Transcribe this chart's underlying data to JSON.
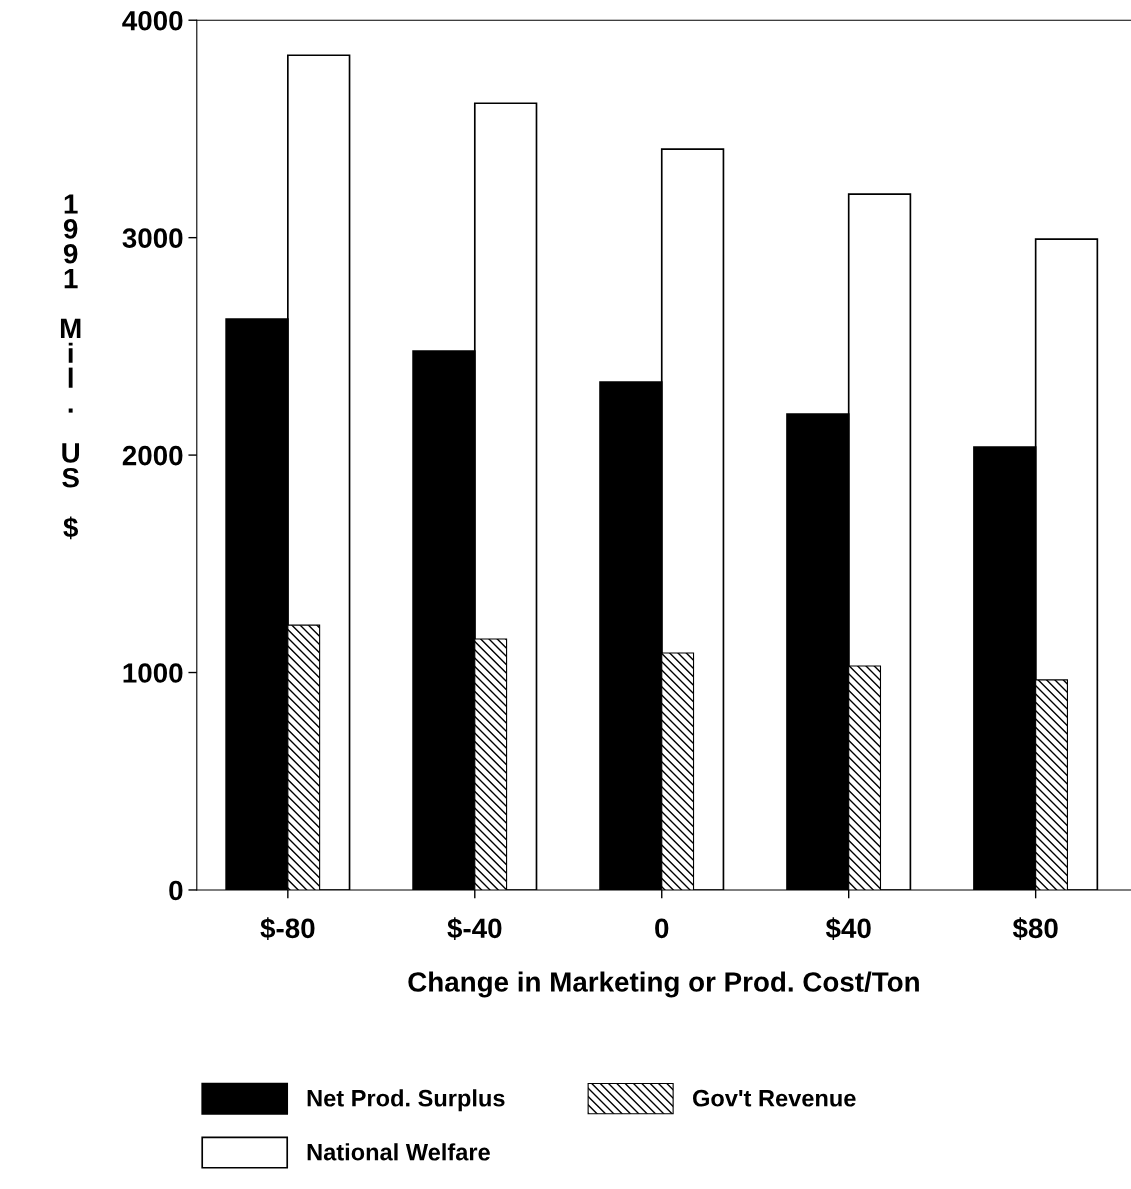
{
  "chart_data": {
    "type": "bar",
    "xlabel": "Change in Marketing or Prod. Cost/Ton",
    "ylabel": "1991 Mil. US $",
    "categories": [
      "$-80",
      "$-40",
      "0",
      "$40",
      "$80"
    ],
    "series": [
      {
        "name": "Net Prod. Surplus",
        "color": "#000000",
        "values": [
          2625,
          2478,
          2336,
          2189,
          2037
        ]
      },
      {
        "name": "Gov't Revenue",
        "color": "#000000",
        "values": [
          1218,
          1154,
          1090,
          1030,
          966
        ]
      },
      {
        "name": "National Welfare",
        "color": "#ffffff",
        "values": [
          3839,
          3618,
          3407,
          3200,
          2993
        ]
      }
    ],
    "ylim": [
      0,
      4000
    ],
    "yticks": [
      0,
      1000,
      2000,
      3000,
      4000
    ],
    "grid": false,
    "legend": "bottom"
  }
}
